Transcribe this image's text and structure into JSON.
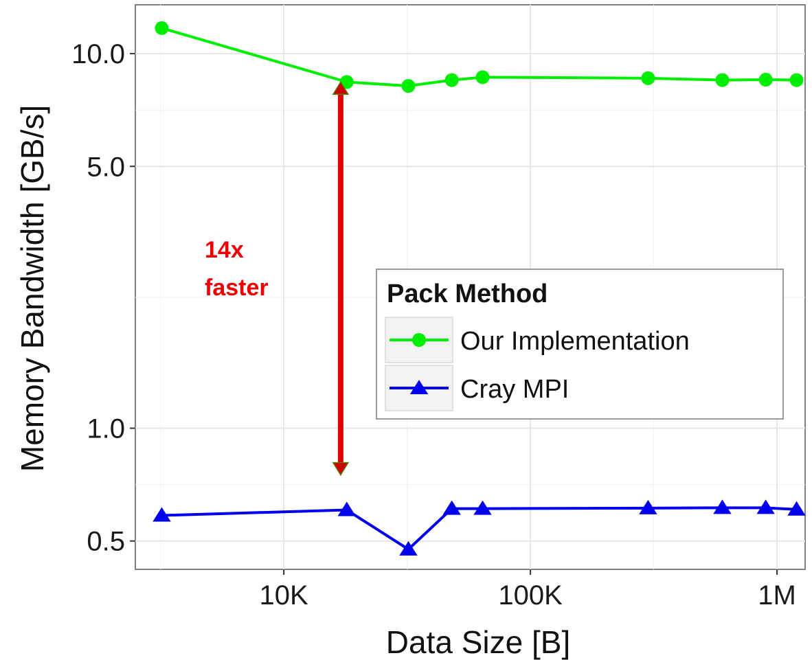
{
  "chart_data": {
    "type": "line",
    "xlabel": "Data Size [B]",
    "ylabel": "Memory Bandwidth [GB/s]",
    "x_scale": "log",
    "y_scale": "log",
    "xlim": [
      2500,
      1300000
    ],
    "ylim": [
      0.42,
      13.5
    ],
    "x_ticks": [
      {
        "value": 10000,
        "label": "10K"
      },
      {
        "value": 100000,
        "label": "100K"
      },
      {
        "value": 1000000,
        "label": "1M"
      }
    ],
    "y_ticks": [
      {
        "value": 0.5,
        "label": "0.5"
      },
      {
        "value": 1.0,
        "label": "1.0"
      },
      {
        "value": 5.0,
        "label": "5.0"
      },
      {
        "value": 10.0,
        "label": "10.0"
      }
    ],
    "grid": true,
    "legend": {
      "title": "Pack Method",
      "placement": "center-right"
    },
    "series": [
      {
        "name": "Our Implementation",
        "color": "#00ee00",
        "marker": "circle",
        "x": [
          3200,
          18000,
          32000,
          48000,
          64000,
          300000,
          600000,
          900000,
          1200000
        ],
        "y": [
          11.7,
          8.4,
          8.2,
          8.5,
          8.65,
          8.6,
          8.5,
          8.52,
          8.5
        ]
      },
      {
        "name": "Cray MPI",
        "color": "#0000ee",
        "marker": "triangle",
        "x": [
          3200,
          18000,
          32000,
          48000,
          64000,
          300000,
          600000,
          900000,
          1200000
        ],
        "y": [
          0.585,
          0.605,
          0.475,
          0.61,
          0.61,
          0.612,
          0.613,
          0.613,
          0.607
        ]
      }
    ],
    "annotation": {
      "lines": [
        "14x",
        "faster"
      ],
      "color": "#ee0000",
      "arrow_x": 17000,
      "arrow_y_top": 8.4,
      "arrow_y_bottom": 0.75
    }
  }
}
